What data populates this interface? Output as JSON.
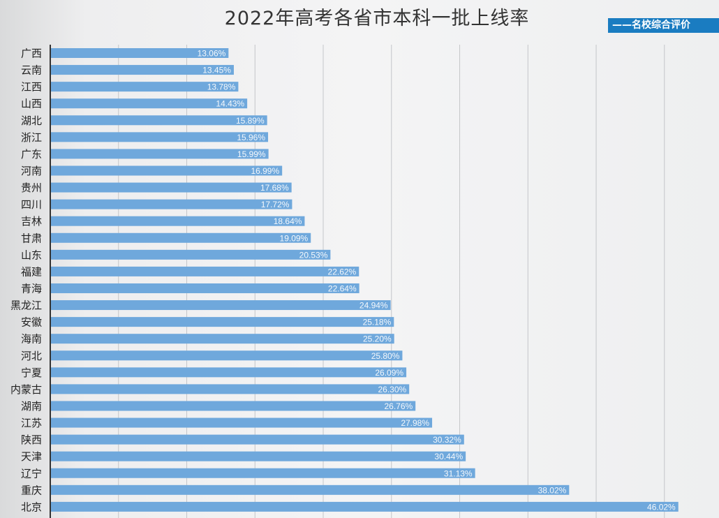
{
  "chart_data": {
    "type": "bar",
    "orientation": "horizontal",
    "title": "2022年高考各省市本科一批上线率",
    "source_banner": "——名校综合评价",
    "categories": [
      "广西",
      "云南",
      "江西",
      "山西",
      "湖北",
      "浙江",
      "广东",
      "河南",
      "贵州",
      "四川",
      "吉林",
      "甘肃",
      "山东",
      "福建",
      "青海",
      "黑龙江",
      "安徽",
      "海南",
      "河北",
      "宁夏",
      "内蒙古",
      "湖南",
      "江苏",
      "陕西",
      "天津",
      "辽宁",
      "重庆",
      "北京"
    ],
    "values": [
      13.06,
      13.45,
      13.78,
      14.43,
      15.89,
      15.96,
      15.99,
      16.99,
      17.68,
      17.72,
      18.64,
      19.09,
      20.53,
      22.62,
      22.64,
      24.94,
      25.18,
      25.2,
      25.8,
      26.09,
      26.3,
      26.76,
      27.98,
      30.32,
      30.44,
      31.13,
      38.02,
      46.02
    ],
    "data_labels": [
      "13.06%",
      "13.45%",
      "13.78%",
      "14.43%",
      "15.89%",
      "15.96%",
      "15.99%",
      "16.99%",
      "17.68%",
      "17.72%",
      "18.64%",
      "19.09%",
      "20.53%",
      "22.62%",
      "22.64%",
      "24.94%",
      "25.18%",
      "25.20%",
      "25.80%",
      "26.09%",
      "26.30%",
      "26.76%",
      "27.98%",
      "30.32%",
      "30.44%",
      "31.13%",
      "38.02%",
      "46.02%"
    ],
    "unit": "%",
    "xlim": [
      0,
      49
    ],
    "grid": true,
    "grid_step": 5,
    "bar_color": "#6fa8dc",
    "badge_color": "#1a7cc1"
  }
}
